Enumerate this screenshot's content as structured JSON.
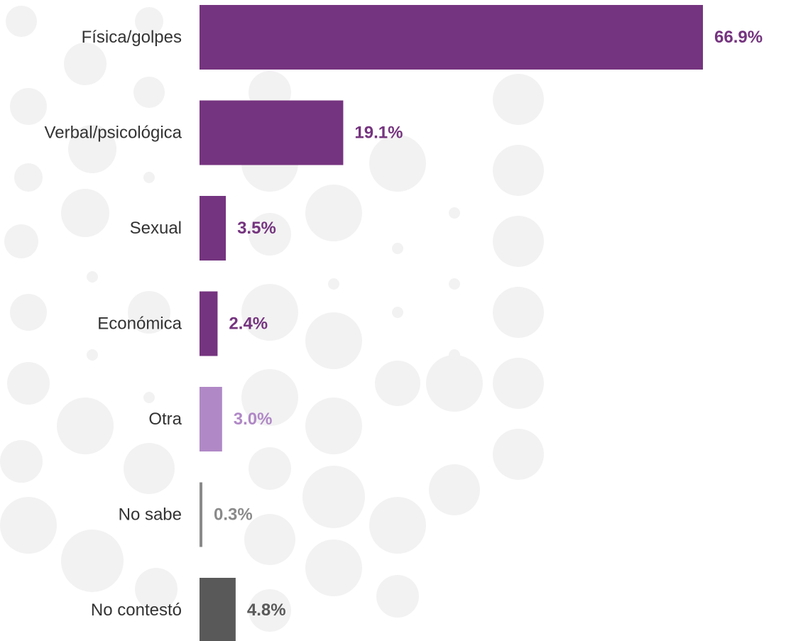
{
  "chart_data": {
    "type": "bar",
    "orientation": "horizontal",
    "categories": [
      "Física/golpes",
      "Verbal/psicológica",
      "Sexual",
      "Económica",
      "Otra",
      "No sabe",
      "No contestó"
    ],
    "values": [
      66.9,
      19.1,
      3.5,
      2.4,
      3.0,
      0.3,
      4.8
    ],
    "value_labels": [
      "66.9%",
      "19.1%",
      "3.5%",
      "2.4%",
      "3.0%",
      "0.3%",
      "4.8%"
    ],
    "bar_colors": [
      "#75347f",
      "#75347f",
      "#75347f",
      "#75347f",
      "#b088c6",
      "#8a8a8a",
      "#595959"
    ],
    "label_colors": [
      "#75347f",
      "#75347f",
      "#75347f",
      "#75347f",
      "#b088c6",
      "#8a8a8a",
      "#595959"
    ],
    "xlim": [
      0,
      66.9
    ],
    "grid": false,
    "legend": "none",
    "title": "",
    "xlabel": "",
    "ylabel": ""
  }
}
